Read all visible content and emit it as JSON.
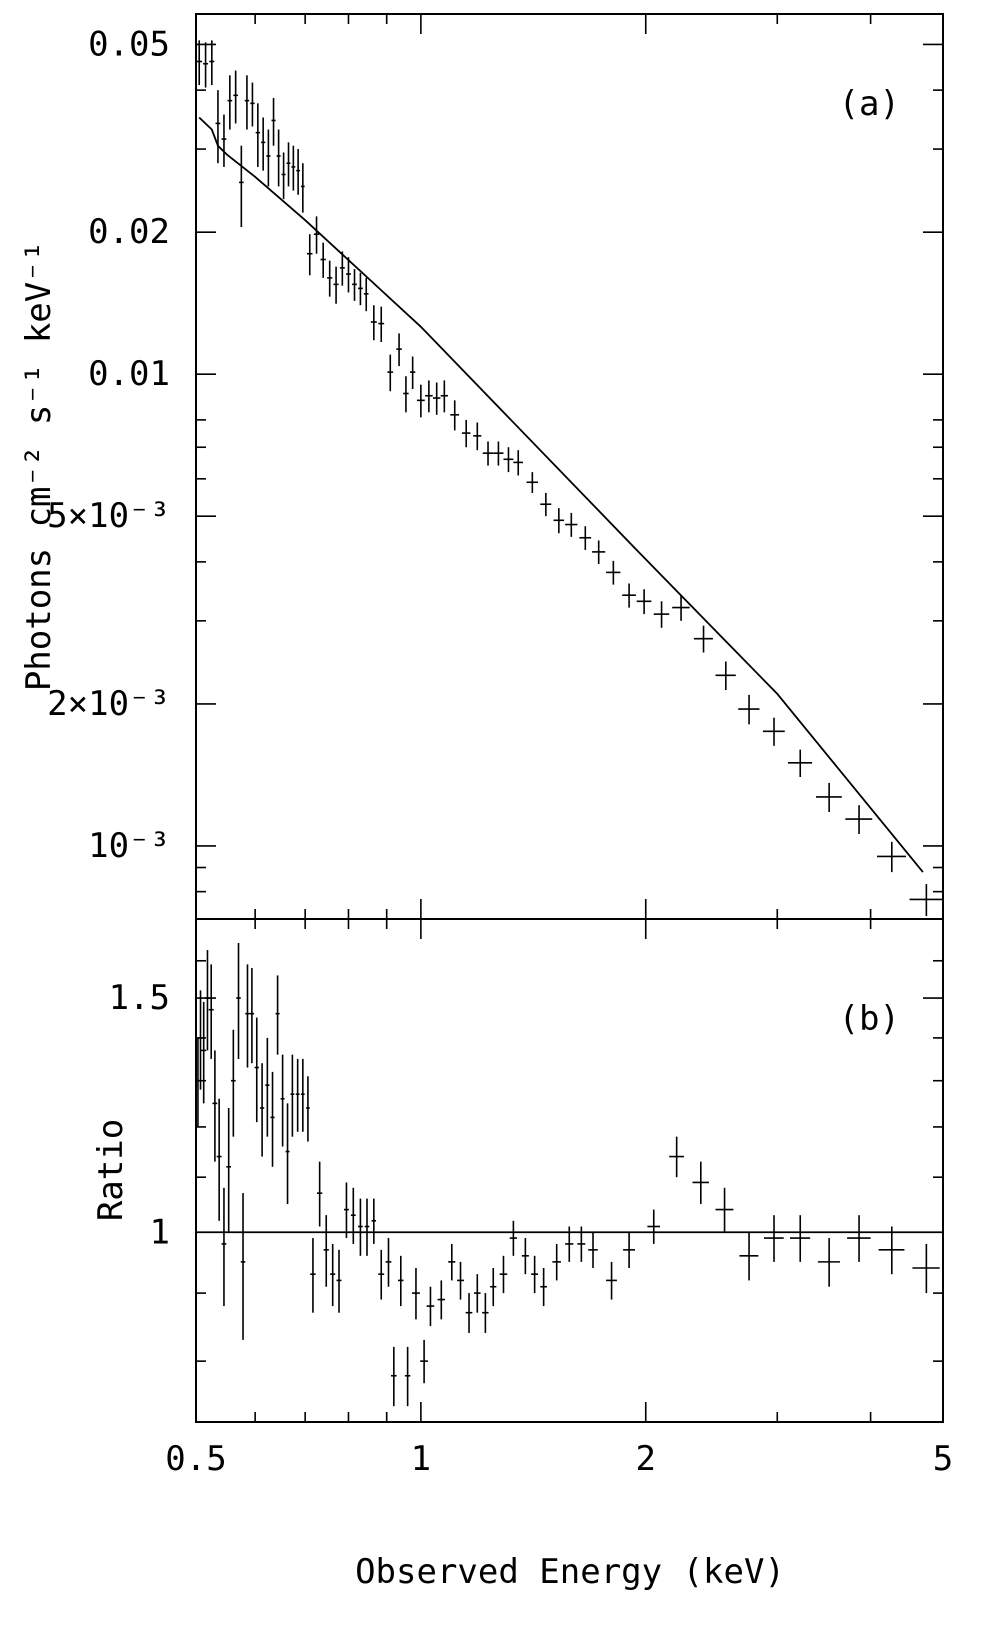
{
  "chart_data": [
    {
      "panel": "(a)",
      "type": "scatter",
      "xscale": "log",
      "yscale": "log",
      "xlim": [
        0.5,
        5
      ],
      "ylim": [
        0.0007,
        0.058
      ],
      "ylabel": "Photons cm⁻² s⁻¹ keV⁻¹",
      "yticks": [
        {
          "value": 0.05,
          "label": "0.05"
        },
        {
          "value": 0.02,
          "label": "0.02"
        },
        {
          "value": 0.01,
          "label": "0.01"
        },
        {
          "value": 0.005,
          "label": "5×10⁻³"
        },
        {
          "value": 0.002,
          "label": "2×10⁻³"
        },
        {
          "value": 0.001,
          "label": "10⁻³"
        }
      ],
      "points": [
        [
          0.505,
          0.046,
          0.0045,
          0.005
        ],
        [
          0.515,
          0.0455,
          0.004,
          0.005
        ],
        [
          0.525,
          0.046,
          0.004,
          0.005
        ],
        [
          0.535,
          0.034,
          0.004,
          0.006
        ],
        [
          0.545,
          0.0315,
          0.004,
          0.004
        ],
        [
          0.555,
          0.038,
          0.004,
          0.005
        ],
        [
          0.565,
          0.039,
          0.004,
          0.005
        ],
        [
          0.575,
          0.0255,
          0.004,
          0.005
        ],
        [
          0.585,
          0.038,
          0.004,
          0.005
        ],
        [
          0.595,
          0.0375,
          0.004,
          0.004
        ],
        [
          0.605,
          0.0325,
          0.004,
          0.005
        ],
        [
          0.615,
          0.031,
          0.004,
          0.004
        ],
        [
          0.625,
          0.029,
          0.004,
          0.004
        ],
        [
          0.635,
          0.0345,
          0.004,
          0.004
        ],
        [
          0.645,
          0.029,
          0.004,
          0.004
        ],
        [
          0.655,
          0.0265,
          0.004,
          0.003
        ],
        [
          0.665,
          0.028,
          0.004,
          0.003
        ],
        [
          0.675,
          0.0275,
          0.004,
          0.003
        ],
        [
          0.685,
          0.027,
          0.004,
          0.003
        ],
        [
          0.695,
          0.025,
          0.004,
          0.003
        ],
        [
          0.71,
          0.018,
          0.006,
          0.0018
        ],
        [
          0.725,
          0.0198,
          0.006,
          0.0018
        ],
        [
          0.74,
          0.0175,
          0.006,
          0.0015
        ],
        [
          0.755,
          0.016,
          0.006,
          0.0014
        ],
        [
          0.77,
          0.0155,
          0.006,
          0.0014
        ],
        [
          0.785,
          0.0168,
          0.006,
          0.0014
        ],
        [
          0.8,
          0.0163,
          0.006,
          0.0014
        ],
        [
          0.815,
          0.0155,
          0.006,
          0.0012
        ],
        [
          0.83,
          0.0152,
          0.006,
          0.0012
        ],
        [
          0.845,
          0.0148,
          0.006,
          0.0012
        ],
        [
          0.865,
          0.0129,
          0.008,
          0.0011
        ],
        [
          0.885,
          0.0128,
          0.008,
          0.0011
        ],
        [
          0.91,
          0.0101,
          0.008,
          0.0009
        ],
        [
          0.935,
          0.0113,
          0.008,
          0.0009
        ],
        [
          0.955,
          0.0091,
          0.008,
          0.0008
        ],
        [
          0.975,
          0.0101,
          0.008,
          0.0008
        ],
        [
          1.0,
          0.0088,
          0.012,
          0.0007
        ],
        [
          1.025,
          0.009,
          0.012,
          0.0007
        ],
        [
          1.05,
          0.0089,
          0.012,
          0.0007
        ],
        [
          1.075,
          0.009,
          0.012,
          0.0007
        ],
        [
          1.11,
          0.0082,
          0.015,
          0.0006
        ],
        [
          1.15,
          0.0075,
          0.015,
          0.0005
        ],
        [
          1.19,
          0.0074,
          0.015,
          0.0005
        ],
        [
          1.23,
          0.0068,
          0.02,
          0.0004
        ],
        [
          1.27,
          0.0068,
          0.02,
          0.0004
        ],
        [
          1.31,
          0.0066,
          0.02,
          0.0004
        ],
        [
          1.35,
          0.0065,
          0.02,
          0.0004
        ],
        [
          1.41,
          0.0059,
          0.025,
          0.0003
        ],
        [
          1.47,
          0.0053,
          0.025,
          0.0003
        ],
        [
          1.53,
          0.0049,
          0.025,
          0.0003
        ],
        [
          1.59,
          0.0048,
          0.03,
          0.00028
        ],
        [
          1.66,
          0.0045,
          0.03,
          0.00026
        ],
        [
          1.73,
          0.0042,
          0.035,
          0.00024
        ],
        [
          1.81,
          0.0038,
          0.04,
          0.00022
        ],
        [
          1.9,
          0.0034,
          0.04,
          0.0002
        ],
        [
          1.99,
          0.0033,
          0.045,
          0.0002
        ],
        [
          2.1,
          0.0031,
          0.05,
          0.0002
        ],
        [
          2.23,
          0.0032,
          0.06,
          0.0002
        ],
        [
          2.39,
          0.00275,
          0.07,
          0.00018
        ],
        [
          2.56,
          0.0023,
          0.08,
          0.00016
        ],
        [
          2.75,
          0.00195,
          0.09,
          0.00014
        ],
        [
          2.97,
          0.00175,
          0.1,
          0.00012
        ],
        [
          3.22,
          0.0015,
          0.12,
          0.0001
        ],
        [
          3.52,
          0.00127,
          0.14,
          9e-05
        ],
        [
          3.86,
          0.00114,
          0.16,
          8e-05
        ],
        [
          4.27,
          0.00095,
          0.19,
          7e-05
        ],
        [
          4.75,
          0.00077,
          0.24,
          6e-05
        ]
      ],
      "model_line": [
        [
          0.505,
          0.035
        ],
        [
          0.525,
          0.033
        ],
        [
          0.535,
          0.0305
        ],
        [
          0.55,
          0.0292
        ],
        [
          0.6,
          0.0262
        ],
        [
          0.7,
          0.0212
        ],
        [
          1.0,
          0.0126
        ],
        [
          2.0,
          0.00405
        ],
        [
          3.0,
          0.0021
        ],
        [
          4.7,
          0.00088
        ]
      ]
    },
    {
      "panel": "(b)",
      "type": "scatter",
      "xscale": "log",
      "yscale": "log",
      "xlim": [
        0.5,
        5
      ],
      "ylim": [
        0.72,
        1.72
      ],
      "ylabel": "Ratio",
      "xlabel": "Observed Energy (keV)",
      "yticks": [
        {
          "value": 1.5,
          "label": "1.5"
        },
        {
          "value": 1,
          "label": "1"
        }
      ],
      "xticks": [
        {
          "value": 0.5,
          "label": "0.5"
        },
        {
          "value": 1,
          "label": "1"
        },
        {
          "value": 2,
          "label": "2"
        },
        {
          "value": 5,
          "label": "5"
        }
      ],
      "reference_line": 1,
      "points": [
        [
          0.503,
          1.3,
          0.003,
          0.1
        ],
        [
          0.507,
          1.4,
          0.003,
          0.12
        ],
        [
          0.512,
          1.37,
          0.004,
          0.12
        ],
        [
          0.518,
          1.5,
          0.004,
          0.13
        ],
        [
          0.524,
          1.47,
          0.004,
          0.12
        ],
        [
          0.53,
          1.25,
          0.004,
          0.12
        ],
        [
          0.537,
          1.14,
          0.004,
          0.12
        ],
        [
          0.545,
          0.98,
          0.004,
          0.1
        ],
        [
          0.553,
          1.12,
          0.004,
          0.12
        ],
        [
          0.561,
          1.3,
          0.004,
          0.12
        ],
        [
          0.57,
          1.5,
          0.004,
          0.15
        ],
        [
          0.578,
          0.95,
          0.004,
          0.12
        ],
        [
          0.586,
          1.46,
          0.004,
          0.13
        ],
        [
          0.594,
          1.46,
          0.004,
          0.12
        ],
        [
          0.603,
          1.33,
          0.004,
          0.12
        ],
        [
          0.613,
          1.24,
          0.004,
          0.1
        ],
        [
          0.623,
          1.29,
          0.004,
          0.11
        ],
        [
          0.633,
          1.22,
          0.004,
          0.1
        ],
        [
          0.643,
          1.46,
          0.004,
          0.1
        ],
        [
          0.653,
          1.26,
          0.004,
          0.1
        ],
        [
          0.663,
          1.15,
          0.004,
          0.1
        ],
        [
          0.673,
          1.27,
          0.004,
          0.09
        ],
        [
          0.684,
          1.27,
          0.004,
          0.08
        ],
        [
          0.695,
          1.27,
          0.004,
          0.08
        ],
        [
          0.706,
          1.24,
          0.004,
          0.07
        ],
        [
          0.717,
          0.93,
          0.006,
          0.06
        ],
        [
          0.732,
          1.07,
          0.006,
          0.06
        ],
        [
          0.747,
          0.97,
          0.006,
          0.06
        ],
        [
          0.762,
          0.93,
          0.006,
          0.05
        ],
        [
          0.777,
          0.92,
          0.006,
          0.05
        ],
        [
          0.795,
          1.04,
          0.006,
          0.05
        ],
        [
          0.812,
          1.03,
          0.006,
          0.05
        ],
        [
          0.83,
          1.01,
          0.006,
          0.05
        ],
        [
          0.847,
          1.01,
          0.006,
          0.05
        ],
        [
          0.865,
          1.02,
          0.006,
          0.04
        ],
        [
          0.885,
          0.93,
          0.008,
          0.04
        ],
        [
          0.905,
          0.95,
          0.008,
          0.04
        ],
        [
          0.92,
          0.78,
          0.008,
          0.04
        ],
        [
          0.94,
          0.92,
          0.008,
          0.04
        ],
        [
          0.96,
          0.78,
          0.008,
          0.04
        ],
        [
          0.985,
          0.9,
          0.012,
          0.04
        ],
        [
          1.01,
          0.8,
          0.012,
          0.03
        ],
        [
          1.03,
          0.88,
          0.012,
          0.03
        ],
        [
          1.065,
          0.89,
          0.012,
          0.03
        ],
        [
          1.1,
          0.95,
          0.012,
          0.03
        ],
        [
          1.13,
          0.92,
          0.012,
          0.03
        ],
        [
          1.16,
          0.87,
          0.012,
          0.03
        ],
        [
          1.19,
          0.9,
          0.012,
          0.03
        ],
        [
          1.22,
          0.87,
          0.012,
          0.03
        ],
        [
          1.25,
          0.91,
          0.012,
          0.03
        ],
        [
          1.29,
          0.93,
          0.015,
          0.03
        ],
        [
          1.33,
          0.99,
          0.015,
          0.03
        ],
        [
          1.38,
          0.96,
          0.015,
          0.03
        ],
        [
          1.42,
          0.93,
          0.015,
          0.03
        ],
        [
          1.46,
          0.91,
          0.015,
          0.03
        ],
        [
          1.52,
          0.95,
          0.02,
          0.03
        ],
        [
          1.58,
          0.98,
          0.02,
          0.03
        ],
        [
          1.64,
          0.98,
          0.02,
          0.03
        ],
        [
          1.7,
          0.97,
          0.025,
          0.03
        ],
        [
          1.8,
          0.92,
          0.03,
          0.03
        ],
        [
          1.9,
          0.97,
          0.035,
          0.03
        ],
        [
          2.05,
          1.01,
          0.04,
          0.03
        ],
        [
          2.2,
          1.14,
          0.05,
          0.04
        ],
        [
          2.37,
          1.09,
          0.06,
          0.04
        ],
        [
          2.55,
          1.04,
          0.07,
          0.04
        ],
        [
          2.75,
          0.96,
          0.08,
          0.04
        ],
        [
          2.97,
          0.99,
          0.09,
          0.04
        ],
        [
          3.22,
          0.99,
          0.1,
          0.04
        ],
        [
          3.52,
          0.95,
          0.12,
          0.04
        ],
        [
          3.86,
          0.99,
          0.14,
          0.04
        ],
        [
          4.27,
          0.97,
          0.17,
          0.04
        ],
        [
          4.75,
          0.94,
          0.2,
          0.04
        ]
      ]
    }
  ]
}
